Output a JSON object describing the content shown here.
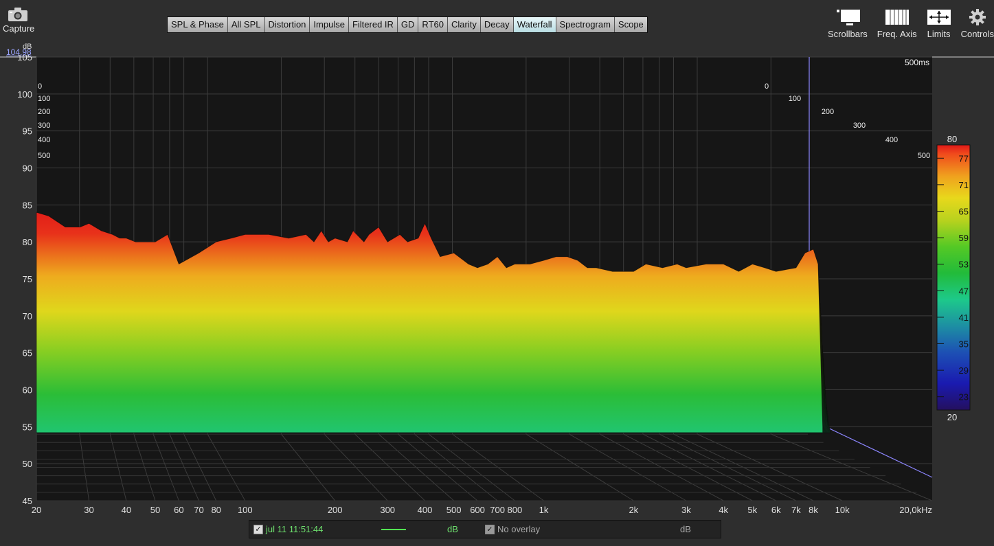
{
  "capture": {
    "label": "Capture",
    "icon": "camera-icon"
  },
  "tabs": [
    {
      "label": "SPL & Phase"
    },
    {
      "label": "All SPL"
    },
    {
      "label": "Distortion"
    },
    {
      "label": "Impulse"
    },
    {
      "label": "Filtered IR"
    },
    {
      "label": "GD"
    },
    {
      "label": "RT60"
    },
    {
      "label": "Clarity"
    },
    {
      "label": "Decay"
    },
    {
      "label": "Waterfall",
      "active": true
    },
    {
      "label": "Spectrogram"
    },
    {
      "label": "Scope"
    }
  ],
  "tools": [
    {
      "label": "Scrollbars",
      "icon": "scrollbars-icon"
    },
    {
      "label": "Freq. Axis",
      "icon": "freq-axis-icon"
    },
    {
      "label": "Limits",
      "icon": "limits-icon"
    },
    {
      "label": "Controls",
      "icon": "gear-icon"
    }
  ],
  "y_unit": "dB",
  "y_top_value": "104.98",
  "legend": {
    "measurement": "jul 11 11:51:44",
    "measurement_unit": "dB",
    "overlay": "No overlay",
    "overlay_unit": "dB",
    "checkmark": "✓",
    "line_color": "#53e553"
  },
  "chart_data": {
    "type": "waterfall",
    "xscale": "log",
    "xlim": [
      20,
      20000
    ],
    "ylim": [
      45,
      105
    ],
    "y_ticks": [
      "45",
      "50",
      "55",
      "60",
      "65",
      "70",
      "75",
      "80",
      "85",
      "90",
      "95",
      "100",
      "105"
    ],
    "x_ticks": [
      {
        "v": 20,
        "t": "20"
      },
      {
        "v": 30,
        "t": "30"
      },
      {
        "v": 40,
        "t": "40"
      },
      {
        "v": 50,
        "t": "50"
      },
      {
        "v": 60,
        "t": "60"
      },
      {
        "v": 70,
        "t": "70"
      },
      {
        "v": 80,
        "t": "80"
      },
      {
        "v": 100,
        "t": "100"
      },
      {
        "v": 200,
        "t": "200"
      },
      {
        "v": 300,
        "t": "300"
      },
      {
        "v": 400,
        "t": "400"
      },
      {
        "v": 500,
        "t": "500"
      },
      {
        "v": 600,
        "t": "600"
      },
      {
        "v": 700,
        "t": "700"
      },
      {
        "v": 800,
        "t": "800"
      },
      {
        "v": 1000,
        "t": "1k"
      },
      {
        "v": 2000,
        "t": "2k"
      },
      {
        "v": 3000,
        "t": "3k"
      },
      {
        "v": 4000,
        "t": "4k"
      },
      {
        "v": 5000,
        "t": "5k"
      },
      {
        "v": 6000,
        "t": "6k"
      },
      {
        "v": 7000,
        "t": "7k"
      },
      {
        "v": 8000,
        "t": "8k"
      },
      {
        "v": 10000,
        "t": "10k"
      },
      {
        "v": 20000,
        "t": "20,0kHz"
      }
    ],
    "time_ticks_ms": [
      "0",
      "100",
      "200",
      "300",
      "400",
      "500"
    ],
    "time_range_label": "500ms",
    "colorbar": {
      "min": 20,
      "max": 80,
      "ticks": [
        "20",
        "23",
        "29",
        "35",
        "41",
        "47",
        "53",
        "59",
        "65",
        "71",
        "77",
        "80"
      ]
    },
    "front_slice": {
      "freq_hz": [
        20,
        22,
        25,
        28,
        30,
        33,
        36,
        38,
        40,
        43,
        45,
        50,
        55,
        60,
        70,
        80,
        90,
        100,
        110,
        120,
        140,
        160,
        170,
        180,
        190,
        200,
        220,
        230,
        250,
        260,
        280,
        300,
        330,
        350,
        380,
        400,
        420,
        450,
        500,
        560,
        600,
        650,
        700,
        750,
        800,
        900,
        1000,
        1100,
        1200,
        1300,
        1400,
        1500,
        1700,
        2000,
        2200,
        2500,
        2800,
        3000,
        3500,
        4000,
        4500,
        5000,
        5500,
        6000,
        7000,
        7500,
        8000,
        8300,
        8600
      ],
      "spl_db": [
        84,
        83.5,
        82,
        82,
        82.5,
        81.5,
        81,
        80.5,
        80.5,
        80,
        80,
        80,
        81,
        77,
        78.5,
        80,
        80.5,
        81,
        81,
        81,
        80.5,
        81,
        80,
        81.5,
        80,
        80.5,
        80,
        81.5,
        80,
        81,
        82,
        80,
        81,
        80,
        80.5,
        82.5,
        80.5,
        78,
        78.5,
        77,
        76.5,
        77,
        78,
        76.5,
        77,
        77,
        77.5,
        78,
        78,
        77.5,
        76.5,
        76.5,
        76,
        76,
        77,
        76.5,
        77,
        76.5,
        77,
        77,
        76,
        77,
        76.5,
        76,
        76.5,
        78.5,
        79,
        77,
        55
      ]
    }
  }
}
